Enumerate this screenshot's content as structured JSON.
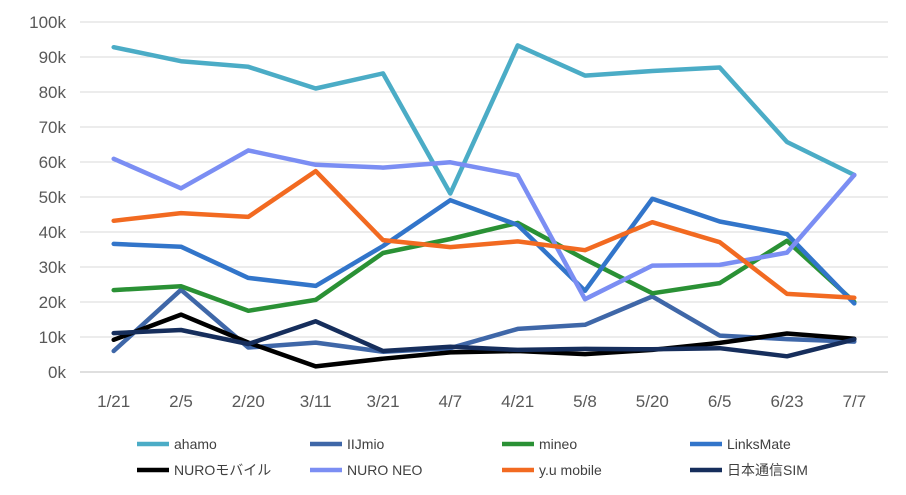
{
  "chart_data": {
    "type": "line",
    "title": "",
    "xlabel": "",
    "ylabel": "",
    "categories": [
      "1/21",
      "2/5",
      "2/20",
      "3/11",
      "3/21",
      "4/7",
      "4/21",
      "5/8",
      "5/20",
      "6/5",
      "6/23",
      "7/7"
    ],
    "y_ticks": [
      "0k",
      "10k",
      "20k",
      "30k",
      "40k",
      "50k",
      "60k",
      "70k",
      "80k",
      "90k",
      "100k"
    ],
    "ylim": [
      0,
      100000
    ],
    "grid": "horizontal",
    "legend_position": "bottom",
    "series": [
      {
        "name": "ahamo",
        "color": "#4BACC6",
        "values": [
          92800,
          88800,
          87200,
          81000,
          85300,
          51000,
          93300,
          84700,
          86000,
          87000,
          65700,
          56300
        ]
      },
      {
        "name": "IIJmio",
        "color": "#3F67A8",
        "values": [
          6000,
          23500,
          7000,
          8400,
          5800,
          6800,
          12300,
          13500,
          21600,
          10400,
          9400,
          8700
        ]
      },
      {
        "name": "mineo",
        "color": "#2A9135",
        "values": [
          23400,
          24500,
          17500,
          20600,
          34000,
          38000,
          42600,
          32200,
          22500,
          25400,
          37500,
          20000
        ]
      },
      {
        "name": "LinksMate",
        "color": "#3275CA",
        "values": [
          36600,
          35800,
          26900,
          24600,
          36000,
          49100,
          42000,
          23200,
          49500,
          43000,
          39400,
          19600
        ]
      },
      {
        "name": "NUROモバイル",
        "color": "#000000",
        "values": [
          9200,
          16400,
          8400,
          1600,
          3800,
          5600,
          6000,
          5100,
          6300,
          8300,
          11000,
          9500
        ]
      },
      {
        "name": "NURO NEO",
        "color": "#7B8EF3",
        "values": [
          60900,
          52500,
          63300,
          59200,
          58400,
          59900,
          56200,
          20800,
          30400,
          30600,
          34100,
          56300
        ]
      },
      {
        "name": "y.u mobile",
        "color": "#F26A21",
        "values": [
          43200,
          45400,
          44300,
          57400,
          37700,
          35700,
          37300,
          34800,
          42800,
          37100,
          22300,
          21200
        ]
      },
      {
        "name": "日本通信SIM",
        "color": "#162E5C",
        "values": [
          11100,
          12000,
          8000,
          14500,
          6000,
          7200,
          6300,
          6600,
          6500,
          6800,
          4500,
          9300
        ]
      }
    ]
  }
}
